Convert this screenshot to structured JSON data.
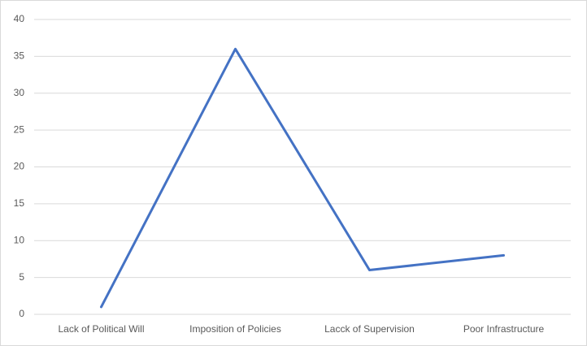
{
  "chart_data": {
    "type": "line",
    "categories": [
      "Lack of Political Will",
      "Imposition of Policies",
      "Lacck of Supervision",
      "Poor Infrastructure"
    ],
    "values": [
      1,
      36,
      6,
      8
    ],
    "color": "#4472c4",
    "ylim": [
      0,
      40
    ],
    "yticks": [
      0,
      5,
      10,
      15,
      20,
      25,
      30,
      35,
      40
    ],
    "grid": true
  }
}
